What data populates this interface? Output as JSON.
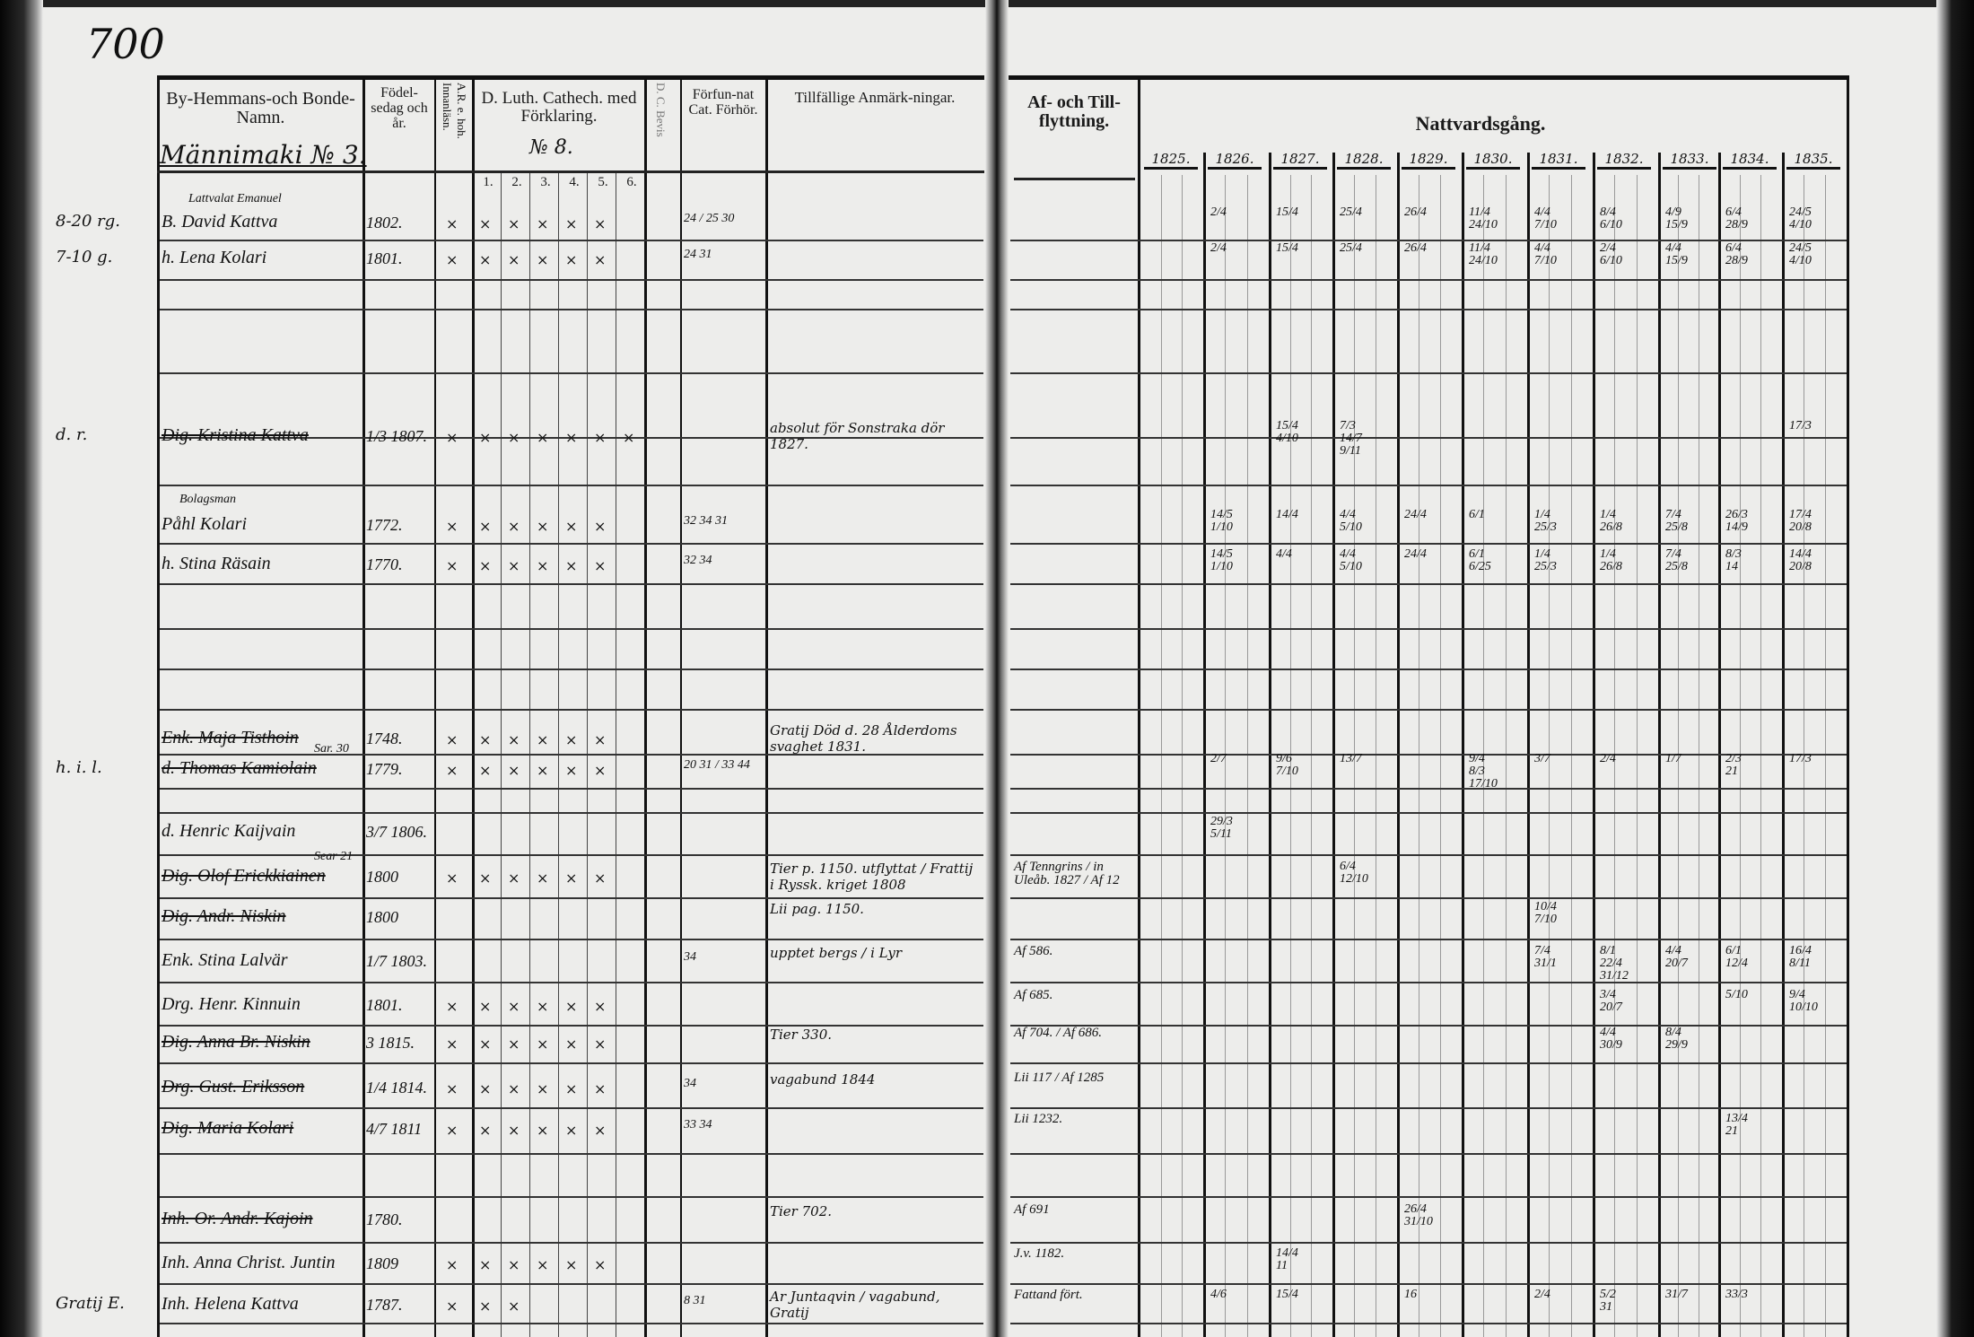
{
  "page_number": "700",
  "left_page": {
    "headers": {
      "names": "By-Hemmans-och Bonde-Namn.",
      "birth": "Födel-sedag och år.",
      "reading": "A.R. e. hoh. Innanläsn.",
      "catechism": "D. Luth. Cathech. med Förklaring.",
      "catechism_number": "№ 8.",
      "catechism_parts": [
        "1.",
        "2.",
        "3.",
        "4.",
        "5.",
        "6."
      ],
      "certificate": "D. C. Bevis",
      "examination": "Förfun-nat Cat. Förhör.",
      "remarks": "Tillfällige Anmärk-ningar."
    },
    "village": "Männimaki № 3."
  },
  "right_page": {
    "headers": {
      "moves": "Af- och Till-flyttning.",
      "communion": "Nattvardsgång.",
      "years": [
        "1825.",
        "1826.",
        "1827.",
        "1828.",
        "1829.",
        "1830.",
        "1831.",
        "1832.",
        "1833.",
        "1834.",
        "1835."
      ]
    }
  },
  "rows": [
    {
      "margin": "8-20 rg.",
      "above": "Lattvalat Emanuel",
      "name": "B. David Kattva",
      "birth": "1802.",
      "marks": 6,
      "struck": false,
      "exam": "24 / 25 30",
      "remarks": "",
      "moves": "",
      "communion": {
        "1826": [
          "2/4"
        ],
        "1827": [
          "15/4"
        ],
        "1828": [
          "25/4"
        ],
        "1829": [
          "26/4"
        ],
        "1830": [
          "11/4",
          "24/10"
        ],
        "1831": [
          "4/4",
          "7/10"
        ],
        "1832": [
          "8/4",
          "6/10"
        ],
        "1833": [
          "4/9",
          "15/9"
        ],
        "1834": [
          "6/4",
          "28/9"
        ],
        "1835": [
          "24/5",
          "4/10"
        ]
      }
    },
    {
      "margin": "7-10 g.",
      "above": "",
      "name": "h. Lena Kolari",
      "birth": "1801.",
      "marks": 6,
      "struck": false,
      "exam": "24 31",
      "remarks": "",
      "moves": "",
      "communion": {
        "1826": [
          "2/4"
        ],
        "1827": [
          "15/4"
        ],
        "1828": [
          "25/4"
        ],
        "1829": [
          "26/4"
        ],
        "1830": [
          "11/4",
          "24/10"
        ],
        "1831": [
          "4/4",
          "7/10"
        ],
        "1832": [
          "2/4",
          "6/10"
        ],
        "1833": [
          "4/4",
          "15/9"
        ],
        "1834": [
          "6/4",
          "28/9"
        ],
        "1835": [
          "24/5",
          "4/10"
        ]
      }
    },
    {
      "margin": "d. r.",
      "above": "",
      "name": "Dig. Kristina Kattva",
      "birth": "1/3 1807.",
      "marks": 7,
      "struck": true,
      "exam": "",
      "remarks": "absolut för Sonstraka dör 1827.",
      "moves": "",
      "communion": {
        "1827": [
          "15/4",
          "4/10"
        ],
        "1828": [
          "7/3",
          "14/7",
          "9/11"
        ],
        "1835": [
          "17/3"
        ]
      }
    },
    {
      "margin": "",
      "above": "Bolagsman",
      "name": "Påhl Kolari",
      "birth": "1772.",
      "marks": 6,
      "struck": false,
      "exam": "32 34 31",
      "remarks": "",
      "moves": "",
      "communion": {
        "1826": [
          "14/5",
          "1/10"
        ],
        "1827": [
          "14/4"
        ],
        "1828": [
          "4/4",
          "5/10"
        ],
        "1829": [
          "24/4"
        ],
        "1830": [
          "6/1"
        ],
        "1831": [
          "1/4",
          "25/3"
        ],
        "1832": [
          "1/4",
          "26/8"
        ],
        "1833": [
          "7/4",
          "25/8"
        ],
        "1834": [
          "26/3",
          "14/9"
        ],
        "1835": [
          "17/4",
          "20/8"
        ]
      }
    },
    {
      "margin": "",
      "above": "",
      "name": "h. Stina Räsain",
      "birth": "1770.",
      "marks": 6,
      "struck": false,
      "exam": "32 34",
      "remarks": "",
      "moves": "",
      "communion": {
        "1826": [
          "14/5",
          "1/10"
        ],
        "1827": [
          "4/4"
        ],
        "1828": [
          "4/4",
          "5/10"
        ],
        "1829": [
          "24/4"
        ],
        "1830": [
          "6/1",
          "6/25"
        ],
        "1831": [
          "1/4",
          "25/3"
        ],
        "1832": [
          "1/4",
          "26/8"
        ],
        "1833": [
          "7/4",
          "25/8"
        ],
        "1834": [
          "8/3",
          "14"
        ],
        "1835": [
          "14/4",
          "20/8"
        ]
      }
    },
    {
      "margin": "",
      "above": "",
      "name": "Enk. Maja Tisthoin",
      "birth": "1748.",
      "marks": 6,
      "struck": true,
      "exam": "",
      "remarks": "Gratij Död d. 28 Ålderdoms svaghet 1831.",
      "moves": "",
      "communion": {}
    },
    {
      "margin": "h. i. l.",
      "above": "Sar. 30",
      "name": "d. Thomas Kamiolain",
      "birth": "1779.",
      "marks": 6,
      "struck": true,
      "exam": "20 31 / 33 44",
      "remarks": "",
      "moves": "",
      "communion": {
        "1826": [
          "2/7"
        ],
        "1827": [
          "9/6",
          "7/10"
        ],
        "1828": [
          "13/7"
        ],
        "1830": [
          "9/4",
          "8/3",
          "17/10"
        ],
        "1831": [
          "3/7"
        ],
        "1832": [
          "2/4"
        ],
        "1833": [
          "1/7"
        ],
        "1834": [
          "2/3",
          "21"
        ],
        "1835": [
          "17/3"
        ]
      }
    },
    {
      "margin": "",
      "above": "",
      "name": "d. Henric Kaijvain",
      "birth": "3/7 1806.",
      "marks": 0,
      "struck": false,
      "exam": "",
      "remarks": "",
      "moves": "",
      "communion": {
        "1826": [
          "29/3",
          "5/11"
        ]
      }
    },
    {
      "margin": "",
      "above": "Sear 21",
      "name": "Dig. Olof Erickkiainen",
      "birth": "1800",
      "marks": 6,
      "struck": true,
      "exam": "",
      "remarks": "Tier p. 1150. utflyttat / Frattij i Ryssk. kriget 1808",
      "moves": "Af Tenngrins / in Uleåb. 1827 / Af 12",
      "communion": {
        "1828": [
          "6/4",
          "12/10"
        ]
      }
    },
    {
      "margin": "",
      "above": "",
      "name": "Dig. Andr. Niskin",
      "birth": "1800",
      "marks": 0,
      "struck": true,
      "exam": "",
      "remarks": "Lii pag. 1150.",
      "moves": "",
      "communion": {
        "1831": [
          "10/4",
          "7/10"
        ]
      }
    },
    {
      "margin": "",
      "above": "",
      "name": "Enk. Stina Lalvär",
      "birth": "1/7 1803.",
      "marks": 0,
      "struck": false,
      "exam": "34",
      "remarks": "upptet bergs / i Lyr",
      "moves": "Af 586.",
      "communion": {
        "1831": [
          "7/4",
          "31/1"
        ],
        "1832": [
          "8/1",
          "22/4",
          "31/12"
        ],
        "1833": [
          "4/4",
          "20/7"
        ],
        "1834": [
          "6/1",
          "12/4"
        ],
        "1835": [
          "16/4",
          "8/11"
        ]
      }
    },
    {
      "margin": "",
      "above": "",
      "name": "Drg. Henr. Kinnuin",
      "birth": "1801.",
      "marks": 6,
      "struck": false,
      "exam": "",
      "remarks": "",
      "moves": "Af 685.",
      "communion": {
        "1832": [
          "3/4",
          "20/7"
        ],
        "1834": [
          "5/10"
        ],
        "1835": [
          "9/4",
          "10/10"
        ]
      }
    },
    {
      "margin": "",
      "above": "",
      "name": "Dig. Anna Br. Niskin",
      "birth": "3 1815.",
      "marks": 6,
      "struck": true,
      "exam": "",
      "remarks": "Tier 330.",
      "moves": "Af 704. / Af 686.",
      "communion": {
        "1832": [
          "4/4",
          "30/9"
        ],
        "1833": [
          "8/4",
          "29/9"
        ]
      }
    },
    {
      "margin": "",
      "above": "",
      "name": "Drg. Gust. Eriksson",
      "birth": "1/4 1814.",
      "marks": 6,
      "struck": true,
      "exam": "34",
      "remarks": "vagabund 1844",
      "moves": "Lii 117 / Af 1285",
      "communion": {}
    },
    {
      "margin": "",
      "above": "",
      "name": "Dig. Maria Kolari",
      "birth": "4/7 1811",
      "marks": 6,
      "struck": true,
      "exam": "33 34",
      "remarks": "",
      "moves": "Lii 1232.",
      "communion": {
        "1834": [
          "13/4",
          "21"
        ]
      }
    },
    {
      "margin": "",
      "above": "",
      "name": "Inh. Or. Andr. Kajoin",
      "birth": "1780.",
      "marks": 0,
      "struck": true,
      "exam": "",
      "remarks": "Tier 702.",
      "moves": "Af 691",
      "communion": {
        "1829": [
          "26/4",
          "31/10"
        ]
      }
    },
    {
      "margin": "",
      "above": "",
      "name": "Inh. Anna Christ. Juntin",
      "birth": "1809",
      "marks": 6,
      "struck": false,
      "exam": "",
      "remarks": "",
      "moves": "J.v. 1182.",
      "communion": {
        "1827": [
          "14/4",
          "11"
        ]
      }
    },
    {
      "margin": "Gratij E.",
      "above": "",
      "name": "Inh. Helena Kattva",
      "birth": "1787.",
      "marks": 3,
      "struck": false,
      "exam": "8 31",
      "remarks": "Ar Juntaqvin / vagabund, Gratij",
      "moves": "Fattand fört.",
      "communion": {
        "1826": [
          "4/6"
        ],
        "1827": [
          "15/4"
        ],
        "1829": [
          "16"
        ],
        "1831": [
          "2/4"
        ],
        "1832": [
          "5/2",
          "31"
        ],
        "1833": [
          "31/7"
        ],
        "1834": [
          "33/3"
        ]
      }
    }
  ]
}
